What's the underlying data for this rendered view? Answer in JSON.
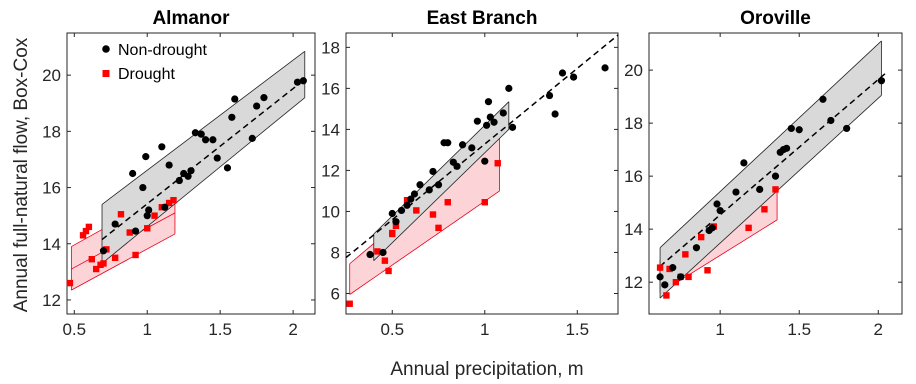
{
  "figure": {
    "ylabel": "Annual full-natural flow, Box-Cox",
    "xlabel": "Annual precipitation, m"
  },
  "legend": {
    "nondrought": "Non-drought",
    "drought": "Drought"
  },
  "colors": {
    "nondrought": "#000000",
    "drought": "#ff0000",
    "nondrought_band": "#d9d9d9",
    "drought_band": "#fcd4d8"
  },
  "chart_data": [
    {
      "type": "scatter",
      "title": "Almanor",
      "xlim": [
        0.45,
        2.15
      ],
      "ylim": [
        11.5,
        21.5
      ],
      "xticks": [
        "0.5",
        "1",
        "1.5",
        "2"
      ],
      "yticks": [
        "12",
        "14",
        "16",
        "18",
        "20"
      ],
      "overall_fit": {
        "x": [
          0.69,
          2.08
        ],
        "y": [
          14.15,
          19.85
        ]
      },
      "series": [
        {
          "name": "Non-drought",
          "x": [
            0.7,
            0.78,
            0.9,
            0.92,
            0.97,
            0.99,
            1.0,
            1.01,
            1.1,
            1.12,
            1.15,
            1.22,
            1.25,
            1.28,
            1.3,
            1.33,
            1.37,
            1.4,
            1.45,
            1.48,
            1.55,
            1.58,
            1.6,
            1.72,
            1.75,
            1.8,
            2.03,
            2.07
          ],
          "y": [
            13.75,
            14.7,
            16.5,
            14.45,
            16.0,
            17.1,
            15.0,
            15.2,
            17.45,
            15.3,
            16.8,
            16.25,
            16.5,
            16.4,
            16.6,
            17.95,
            17.9,
            17.7,
            17.7,
            17.05,
            16.7,
            18.5,
            19.15,
            17.75,
            18.9,
            19.2,
            19.75,
            19.8
          ],
          "fit": {
            "x": [
              0.69,
              2.08
            ],
            "y_lower": [
              13.3,
              19.2
            ],
            "y_upper": [
              15.4,
              20.85
            ]
          }
        },
        {
          "name": "Drought",
          "x": [
            0.47,
            0.56,
            0.58,
            0.6,
            0.62,
            0.65,
            0.68,
            0.7,
            0.72,
            0.78,
            0.82,
            0.88,
            0.92,
            1.0,
            1.05,
            1.1,
            1.15,
            1.18
          ],
          "y": [
            12.6,
            14.3,
            14.45,
            14.6,
            13.45,
            13.1,
            13.25,
            13.3,
            13.8,
            13.5,
            15.05,
            14.4,
            13.6,
            14.55,
            15.0,
            15.3,
            15.45,
            15.55
          ],
          "fit": {
            "x": [
              0.48,
              1.19
            ],
            "y_lower": [
              12.35,
              14.35
            ],
            "y_upper": [
              13.9,
              15.95
            ],
            "y_mid": [
              13.1,
              15.1
            ]
          }
        }
      ]
    },
    {
      "type": "scatter",
      "title": "East Branch",
      "xlim": [
        0.25,
        1.72
      ],
      "ylim": [
        5.0,
        18.7
      ],
      "xticks": [
        "0.5",
        "1",
        "1.5"
      ],
      "yticks": [
        "6",
        "8",
        "10",
        "12",
        "14",
        "16",
        "18"
      ],
      "overall_fit": {
        "x": [
          0.25,
          1.72
        ],
        "y": [
          7.75,
          18.6
        ]
      },
      "series": [
        {
          "name": "Non-drought",
          "x": [
            0.38,
            0.45,
            0.5,
            0.52,
            0.55,
            0.58,
            0.6,
            0.62,
            0.65,
            0.7,
            0.72,
            0.75,
            0.78,
            0.8,
            0.83,
            0.85,
            0.88,
            0.93,
            0.96,
            1.0,
            1.01,
            1.02,
            1.03,
            1.05,
            1.1,
            1.13,
            1.15,
            1.35,
            1.38,
            1.42,
            1.48,
            1.65
          ],
          "y": [
            7.9,
            8.0,
            9.9,
            9.5,
            10.05,
            10.3,
            10.6,
            10.85,
            11.3,
            11.05,
            11.95,
            11.3,
            13.35,
            13.35,
            12.4,
            12.2,
            13.25,
            13.1,
            14.4,
            12.45,
            14.2,
            15.35,
            14.6,
            14.35,
            14.8,
            16.0,
            14.1,
            15.65,
            14.75,
            16.75,
            16.55,
            17.0
          ],
          "fit": {
            "x": [
              0.4,
              1.13
            ],
            "y_lower": [
              7.6,
              14.0
            ],
            "y_upper": [
              8.9,
              15.35
            ]
          }
        },
        {
          "name": "Drought",
          "x": [
            0.27,
            0.42,
            0.46,
            0.48,
            0.5,
            0.5,
            0.52,
            0.58,
            0.63,
            0.72,
            0.75,
            0.8,
            1.0,
            1.07
          ],
          "y": [
            5.5,
            8.05,
            7.6,
            7.1,
            8.9,
            8.95,
            9.3,
            10.55,
            10.05,
            9.85,
            9.2,
            10.45,
            10.45,
            12.35
          ],
          "fit": {
            "x": [
              0.27,
              1.08
            ],
            "y_lower": [
              5.95,
              11.0
            ],
            "y_upper": [
              7.45,
              13.6
            ]
          }
        }
      ]
    },
    {
      "type": "scatter",
      "title": "Oroville",
      "xlim": [
        0.55,
        2.15
      ],
      "ylim": [
        10.8,
        21.4
      ],
      "xticks": [
        "1",
        "1.5",
        "2"
      ],
      "yticks": [
        "12",
        "14",
        "16",
        "18",
        "20"
      ],
      "overall_fit": {
        "x": [
          0.62,
          2.05
        ],
        "y": [
          12.6,
          19.9
        ]
      },
      "series": [
        {
          "name": "Non-drought",
          "x": [
            0.62,
            0.65,
            0.7,
            0.75,
            0.85,
            0.93,
            0.95,
            0.98,
            1.0,
            1.1,
            1.15,
            1.25,
            1.35,
            1.38,
            1.4,
            1.42,
            1.45,
            1.5,
            1.65,
            1.7,
            1.8,
            2.02
          ],
          "y": [
            12.2,
            11.9,
            12.55,
            12.2,
            13.3,
            13.95,
            14.05,
            14.95,
            14.7,
            15.4,
            16.5,
            15.5,
            16.0,
            16.9,
            17.0,
            17.05,
            17.8,
            17.75,
            18.9,
            18.1,
            17.8,
            19.6
          ],
          "fit": {
            "x": [
              0.62,
              2.02
            ],
            "y_lower": [
              11.4,
              19.05
            ],
            "y_upper": [
              13.3,
              21.1
            ]
          }
        },
        {
          "name": "Drought",
          "x": [
            0.62,
            0.66,
            0.68,
            0.72,
            0.75,
            0.78,
            0.8,
            0.88,
            0.92,
            0.96,
            1.18,
            1.28,
            1.35
          ],
          "y": [
            12.55,
            11.5,
            12.5,
            12.0,
            12.2,
            13.05,
            12.2,
            13.7,
            12.45,
            14.1,
            14.05,
            14.75,
            15.5
          ],
          "fit": {
            "x": [
              0.62,
              1.36
            ],
            "y_lower": [
              11.6,
              14.35
            ],
            "y_upper": [
              12.85,
              16.55
            ]
          }
        }
      ]
    }
  ]
}
